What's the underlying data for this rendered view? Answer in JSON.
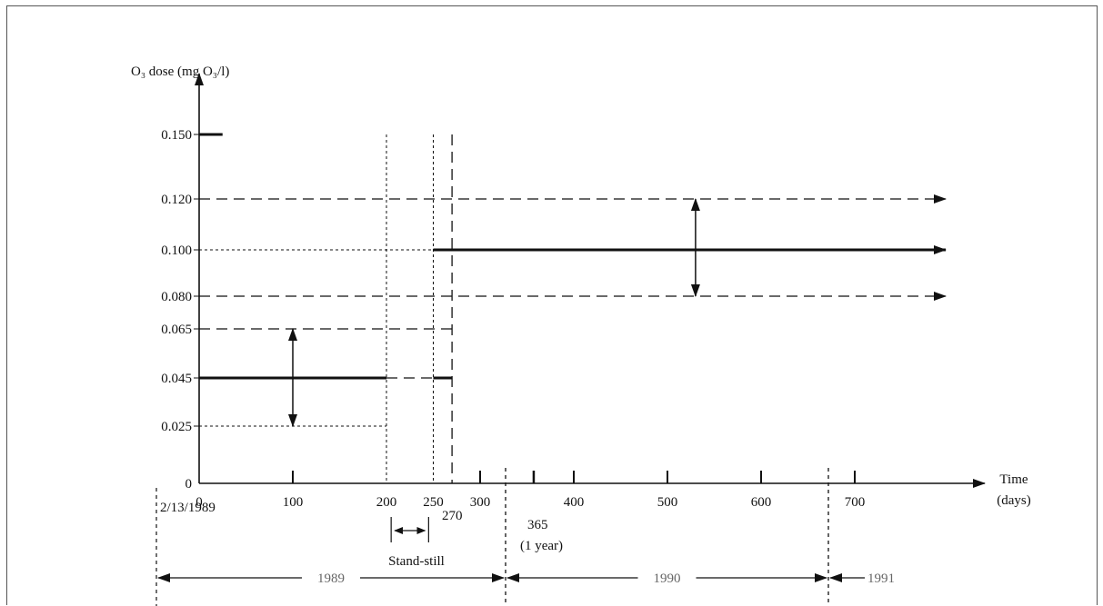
{
  "chart_data": {
    "type": "line",
    "ylabel": "O₃ dose (mg O₃/l)",
    "xlabel": "Time\n(days)",
    "xlabel_lines": [
      "Time",
      "(days)"
    ],
    "x_ticks": [
      0,
      100,
      200,
      250,
      300,
      400,
      500,
      600,
      700
    ],
    "x_tick_labels": [
      "0",
      "100",
      "200",
      "250",
      "300",
      "400",
      "500",
      "600",
      "700"
    ],
    "y_ticks": [
      0,
      0.025,
      0.045,
      0.065,
      0.08,
      0.1,
      0.12,
      0.15
    ],
    "y_tick_labels": [
      "0",
      "0.025",
      "0.045",
      "0.065",
      "0.080",
      "0.100",
      "0.120",
      "0.150"
    ],
    "series": [
      {
        "style": "solid-thick",
        "points": [
          [
            0,
            0.045
          ],
          [
            200,
            0.045
          ]
        ]
      },
      {
        "style": "dashed",
        "points": [
          [
            200,
            0.045
          ],
          [
            250,
            0.045
          ]
        ]
      },
      {
        "style": "solid-thick",
        "points": [
          [
            250,
            0.045
          ],
          [
            270,
            0.045
          ]
        ]
      },
      {
        "style": "solid-thick-arrow",
        "points": [
          [
            250,
            0.1
          ],
          [
            800,
            0.1
          ]
        ]
      },
      {
        "style": "dashed",
        "points": [
          [
            0,
            0.065
          ],
          [
            270,
            0.065
          ]
        ]
      },
      {
        "style": "dotted",
        "points": [
          [
            0,
            0.025
          ],
          [
            200,
            0.025
          ]
        ]
      },
      {
        "style": "dashed-arrow",
        "points": [
          [
            0,
            0.12
          ],
          [
            800,
            0.12
          ]
        ]
      },
      {
        "style": "dashed-arrow",
        "points": [
          [
            0,
            0.08
          ],
          [
            800,
            0.08
          ]
        ]
      },
      {
        "style": "dotted",
        "points": [
          [
            0,
            0.1
          ],
          [
            250,
            0.1
          ]
        ]
      },
      {
        "style": "solid-thick",
        "points": [
          [
            0,
            0.15
          ],
          [
            25,
            0.15
          ]
        ]
      }
    ],
    "vertical_lines": [
      {
        "x": 200,
        "style": "dotted",
        "from": 0,
        "to": 0.15
      },
      {
        "x": 250,
        "style": "dotted",
        "from": 0,
        "to": 0.15
      },
      {
        "x": 270,
        "style": "dashed",
        "from": 0,
        "to": 0.15
      }
    ],
    "range_arrows": [
      {
        "x": 100,
        "from": 0.025,
        "to": 0.065
      },
      {
        "x": 530,
        "from": 0.08,
        "to": 0.12
      }
    ],
    "minor_ticks": [
      365
    ],
    "annotations": {
      "start_date": "2/13/1989",
      "day270": "270",
      "day365": "365",
      "one_year": "(1 year)",
      "stand_still": "Stand-still"
    },
    "year_spans": [
      {
        "label": "1989"
      },
      {
        "label": "1990"
      },
      {
        "label": "1991"
      }
    ]
  }
}
